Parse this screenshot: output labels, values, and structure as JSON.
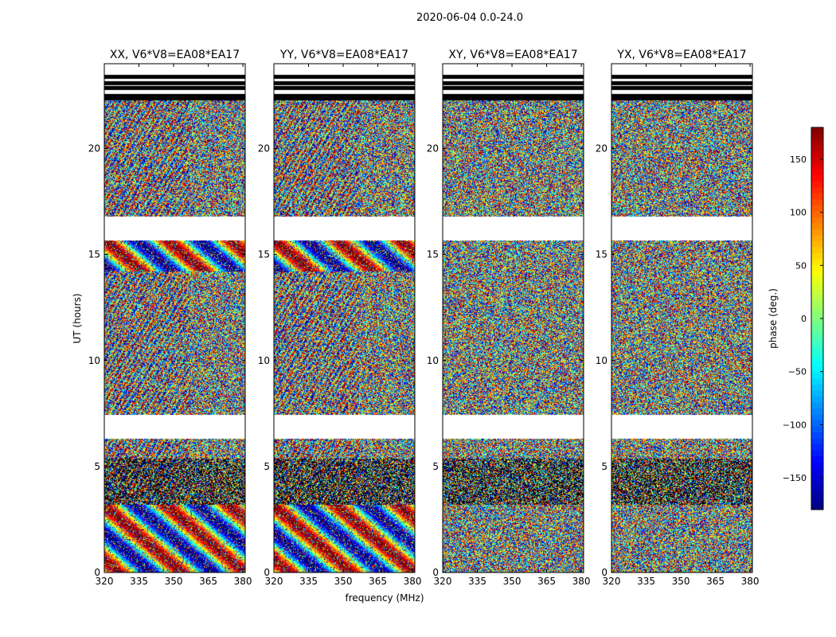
{
  "figure_title": "2020-06-04 0.0-24.0",
  "chart_data": [
    {
      "type": "heatmap",
      "title": "XX, V6*V8=EA08*EA17",
      "xlabel": "frequency (MHz)",
      "ylabel": "UT (hours)",
      "xlim": [
        320,
        381
      ],
      "ylim": [
        0,
        24
      ],
      "xticks": [
        320,
        335,
        350,
        365,
        380
      ],
      "yticks": [
        0,
        5,
        10,
        15,
        20
      ],
      "value": "phase (deg.)",
      "value_range": [
        -180,
        180
      ]
    },
    {
      "type": "heatmap",
      "title": "YY, V6*V8=EA08*EA17",
      "xlabel": "frequency (MHz)",
      "ylabel": "UT (hours)",
      "xlim": [
        320,
        381
      ],
      "ylim": [
        0,
        24
      ],
      "xticks": [
        320,
        335,
        350,
        365,
        380
      ],
      "yticks": [
        0,
        5,
        10,
        15,
        20
      ],
      "value": "phase (deg.)",
      "value_range": [
        -180,
        180
      ]
    },
    {
      "type": "heatmap",
      "title": "XY, V6*V8=EA08*EA17",
      "xlabel": "frequency (MHz)",
      "ylabel": "UT (hours)",
      "xlim": [
        320,
        381
      ],
      "ylim": [
        0,
        24
      ],
      "xticks": [
        320,
        335,
        350,
        365,
        380
      ],
      "yticks": [
        0,
        5,
        10,
        15,
        20
      ],
      "value": "phase (deg.)",
      "value_range": [
        -180,
        180
      ]
    },
    {
      "type": "heatmap",
      "title": "YX, V6*V8=EA08*EA17",
      "xlabel": "frequency (MHz)",
      "ylabel": "UT (hours)",
      "xlim": [
        320,
        381
      ],
      "ylim": [
        0,
        24
      ],
      "xticks": [
        320,
        335,
        350,
        365,
        380
      ],
      "yticks": [
        0,
        5,
        10,
        15,
        20
      ],
      "value": "phase (deg.)",
      "value_range": [
        -180,
        180
      ]
    }
  ],
  "colorbar": {
    "label": "phase (deg.)",
    "range": [
      -180,
      180
    ],
    "ticks": [
      150,
      100,
      50,
      0,
      -50,
      -100,
      -150
    ],
    "tick_labels": [
      "150",
      "100",
      "50",
      "0",
      "−50",
      "−100",
      "−150"
    ],
    "colormap": "jet"
  },
  "shared_xlabel": "frequency (MHz)",
  "shared_ylabel": "UT (hours)"
}
